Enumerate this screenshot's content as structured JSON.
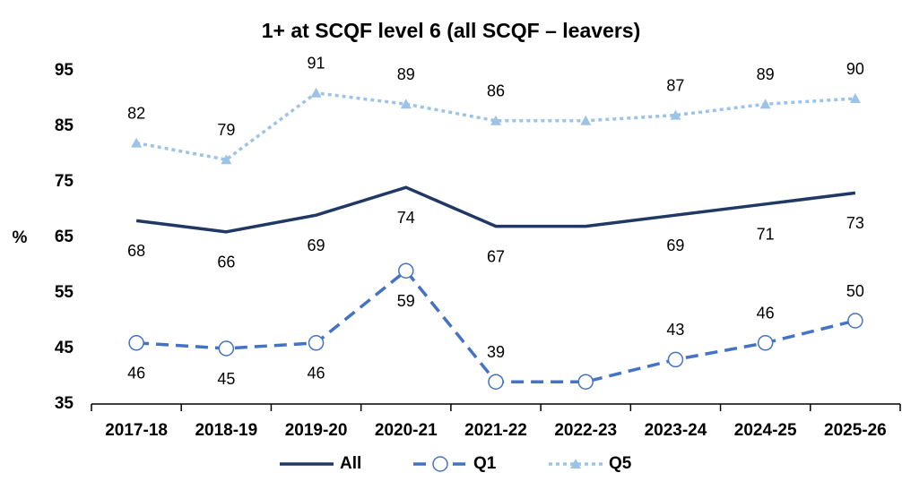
{
  "chart_data": {
    "type": "line",
    "title": "1+ at SCQF level 6 (all SCQF – leavers)",
    "y_label": "%",
    "categories": [
      "2017-18",
      "2018-19",
      "2019-20",
      "2020-21",
      "2021-22",
      "2022-23",
      "2023-24",
      "2024-25",
      "2025-26"
    ],
    "series": [
      {
        "name": "All",
        "color": "#203864",
        "style": "solid",
        "marker": "none",
        "values": [
          68,
          66,
          69,
          74,
          67,
          67,
          69,
          71,
          73
        ],
        "value_labels": [
          "68",
          "66",
          "69",
          "74",
          "67",
          null,
          "69",
          "71",
          "73"
        ]
      },
      {
        "name": "Q1",
        "color": "#4472c4",
        "style": "dashed",
        "marker": "circle",
        "values": [
          46,
          45,
          46,
          59,
          39,
          39,
          43,
          46,
          50
        ],
        "value_labels": [
          "46",
          "45",
          "46",
          "59",
          "39",
          null,
          "43",
          "46",
          "50"
        ]
      },
      {
        "name": "Q5",
        "color": "#9dc3e6",
        "style": "dotted",
        "marker": "triangle",
        "values": [
          82,
          79,
          91,
          89,
          86,
          86,
          87,
          89,
          90
        ],
        "value_labels": [
          "82",
          "79",
          "91",
          "89",
          "86",
          null,
          "87",
          "89",
          "90"
        ]
      }
    ],
    "ylim": [
      35,
      95
    ],
    "yticks": [
      35,
      45,
      55,
      65,
      75,
      85,
      95
    ],
    "grid": false,
    "legend": "bottom"
  }
}
